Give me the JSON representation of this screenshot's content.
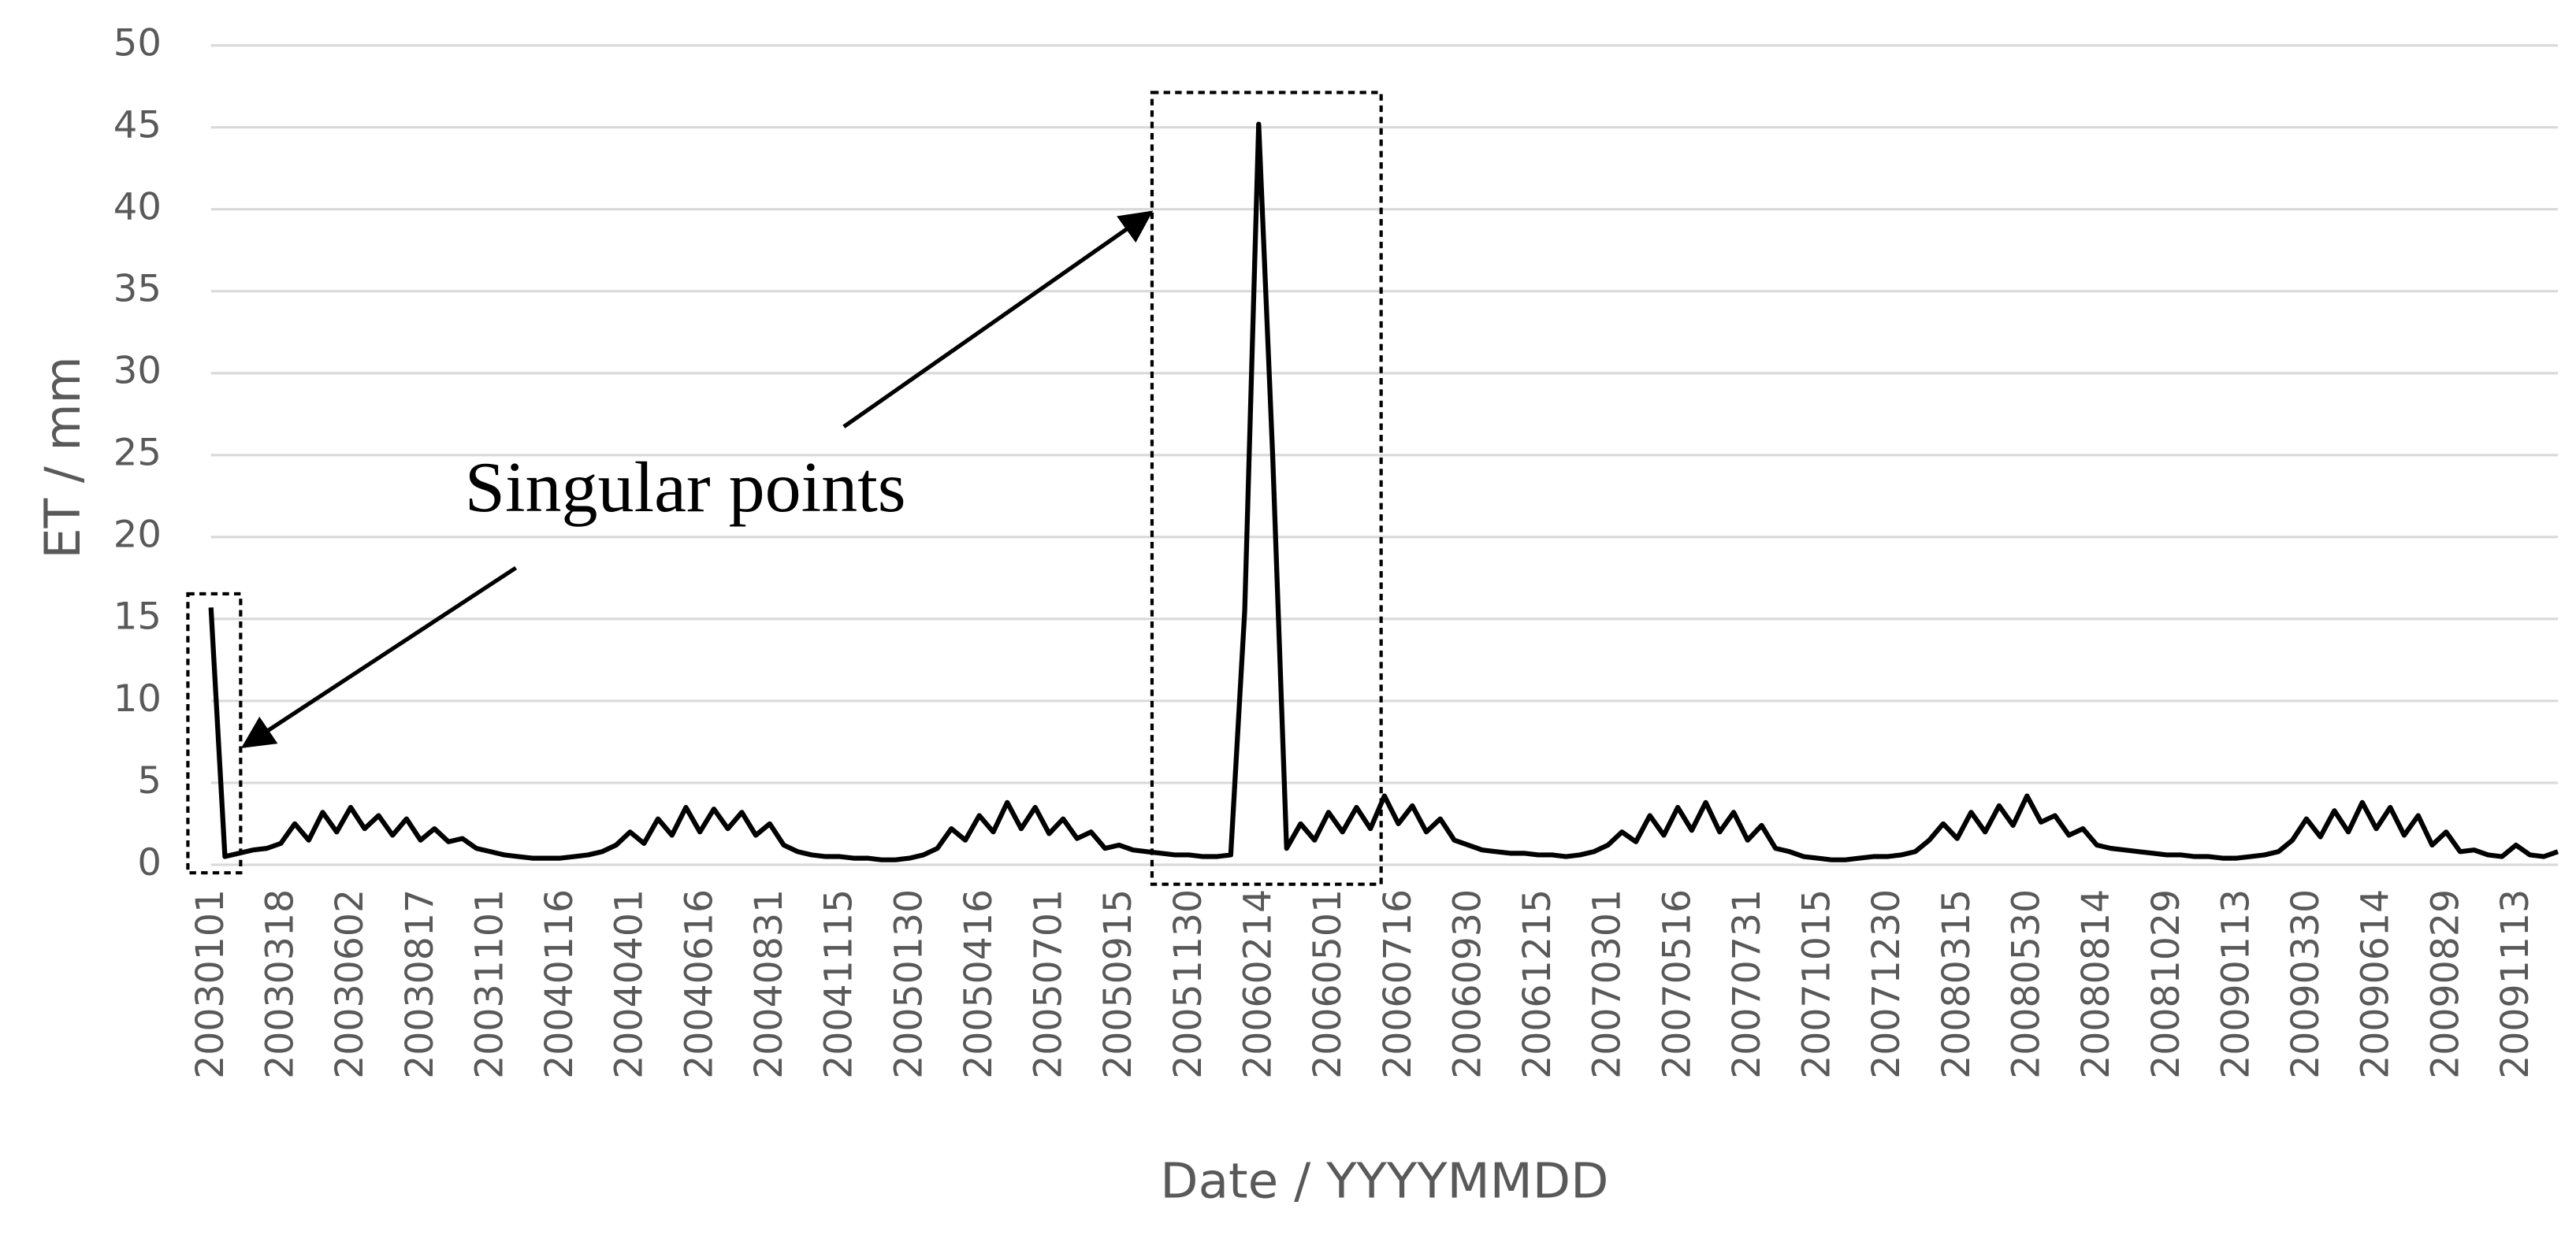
{
  "chart_data": {
    "type": "line",
    "y_label": "ET / mm",
    "x_label": "Date / YYYYMMDD",
    "annotation": "Singular points",
    "color": "#000000",
    "grid": true,
    "ylim": [
      0,
      50
    ],
    "yticks": [
      0,
      5,
      10,
      15,
      20,
      25,
      30,
      35,
      40,
      45,
      50
    ],
    "categories": [
      "20030101",
      null,
      null,
      null,
      null,
      "20030318",
      null,
      null,
      null,
      null,
      "20030602",
      null,
      null,
      null,
      null,
      "20030817",
      null,
      null,
      null,
      null,
      "20031101",
      null,
      null,
      null,
      null,
      "20040116",
      null,
      null,
      null,
      null,
      "20040401",
      null,
      null,
      null,
      null,
      "20040616",
      null,
      null,
      null,
      null,
      "20040831",
      null,
      null,
      null,
      null,
      "20041115",
      null,
      null,
      null,
      null,
      "20050130",
      null,
      null,
      null,
      null,
      "20050416",
      null,
      null,
      null,
      null,
      "20050701",
      null,
      null,
      null,
      null,
      "20050915",
      null,
      null,
      null,
      null,
      "20051130",
      null,
      null,
      null,
      null,
      "20060214",
      null,
      null,
      null,
      null,
      "20060501",
      null,
      null,
      null,
      null,
      "20060716",
      null,
      null,
      null,
      null,
      "20060930",
      null,
      null,
      null,
      null,
      "20061215",
      null,
      null,
      null,
      null,
      "20070301",
      null,
      null,
      null,
      null,
      "20070516",
      null,
      null,
      null,
      null,
      "20070731",
      null,
      null,
      null,
      null,
      "20071015",
      null,
      null,
      null,
      null,
      "20071230",
      null,
      null,
      null,
      null,
      "20080315",
      null,
      null,
      null,
      null,
      "20080530",
      null,
      null,
      null,
      null,
      "20080814",
      null,
      null,
      null,
      null,
      "20081029",
      null,
      null,
      null,
      null,
      "20090113",
      null,
      null,
      null,
      null,
      "20090330",
      null,
      null,
      null,
      null,
      "20090614",
      null,
      null,
      null,
      null,
      "20090829",
      null,
      null,
      null,
      null,
      "20091113",
      null,
      null,
      null
    ],
    "values": [
      15.7,
      0.5,
      0.7,
      0.9,
      1.0,
      1.3,
      2.5,
      1.5,
      3.2,
      2.0,
      3.5,
      2.2,
      3.0,
      1.8,
      2.8,
      1.5,
      2.2,
      1.4,
      1.6,
      1.0,
      0.8,
      0.6,
      0.5,
      0.4,
      0.4,
      0.4,
      0.5,
      0.6,
      0.8,
      1.2,
      2.0,
      1.3,
      2.8,
      1.8,
      3.5,
      2.0,
      3.4,
      2.2,
      3.2,
      1.8,
      2.5,
      1.2,
      0.8,
      0.6,
      0.5,
      0.5,
      0.4,
      0.4,
      0.3,
      0.3,
      0.4,
      0.6,
      1.0,
      2.2,
      1.5,
      3.0,
      2.0,
      3.8,
      2.2,
      3.5,
      1.9,
      2.8,
      1.6,
      2.0,
      1.0,
      1.2,
      0.9,
      0.8,
      0.7,
      0.6,
      0.6,
      0.5,
      0.5,
      0.6,
      15.5,
      45.2,
      25.0,
      1.0,
      2.5,
      1.5,
      3.2,
      2.0,
      3.5,
      2.2,
      4.2,
      2.5,
      3.6,
      2.0,
      2.8,
      1.5,
      1.2,
      0.9,
      0.8,
      0.7,
      0.7,
      0.6,
      0.6,
      0.5,
      0.6,
      0.8,
      1.2,
      2.0,
      1.4,
      3.0,
      1.8,
      3.5,
      2.1,
      3.8,
      2.0,
      3.2,
      1.5,
      2.4,
      1.0,
      0.8,
      0.5,
      0.4,
      0.3,
      0.3,
      0.4,
      0.5,
      0.5,
      0.6,
      0.8,
      1.5,
      2.5,
      1.6,
      3.2,
      2.0,
      3.6,
      2.4,
      4.2,
      2.6,
      3.0,
      1.8,
      2.2,
      1.2,
      1.0,
      0.9,
      0.8,
      0.7,
      0.6,
      0.6,
      0.5,
      0.5,
      0.4,
      0.4,
      0.5,
      0.6,
      0.8,
      1.5,
      2.8,
      1.7,
      3.3,
      2.0,
      3.8,
      2.2,
      3.5,
      1.8,
      3.0,
      1.2,
      2.0,
      0.8,
      0.9,
      0.6,
      0.5,
      1.2,
      0.6,
      0.5,
      0.8
    ]
  }
}
